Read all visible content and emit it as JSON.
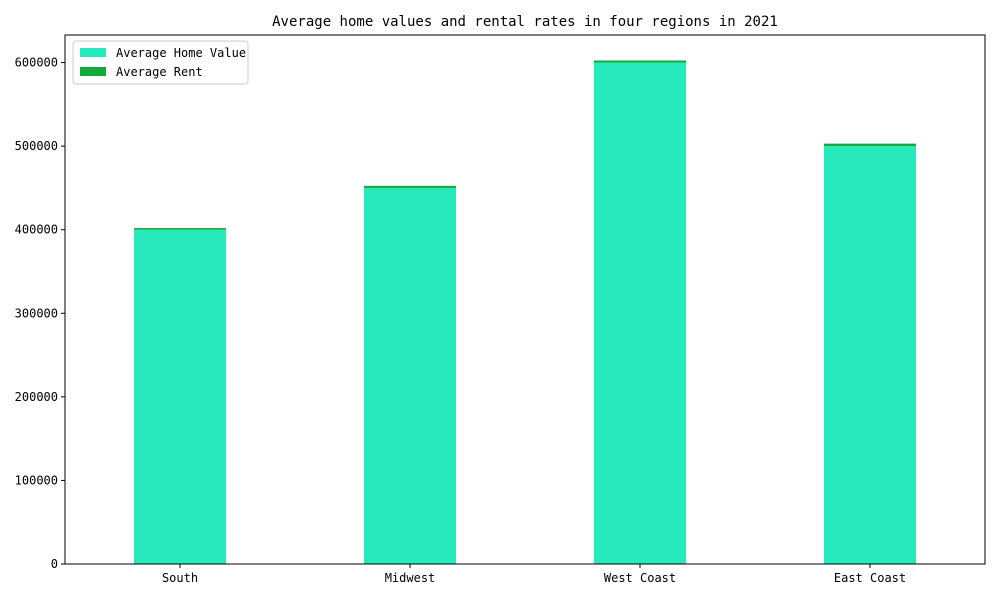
{
  "chart_data": {
    "type": "bar",
    "stacked": true,
    "title": "Average home values and rental rates in four regions in 2021",
    "xlabel": "",
    "ylabel": "",
    "categories": [
      "South",
      "Midwest",
      "West Coast",
      "East Coast"
    ],
    "series": [
      {
        "name": "Average Home Value",
        "values": [
          400000,
          450000,
          600000,
          500000
        ],
        "color": "#26EABB"
      },
      {
        "name": "Average Rent",
        "values": [
          2000,
          2500,
          2500,
          3000
        ],
        "color": "#13AA3C"
      }
    ],
    "ylim": [
      0,
      633000
    ],
    "yticks": [
      0,
      100000,
      200000,
      300000,
      400000,
      500000,
      600000
    ],
    "grid": false,
    "legend_position": "top-left"
  }
}
